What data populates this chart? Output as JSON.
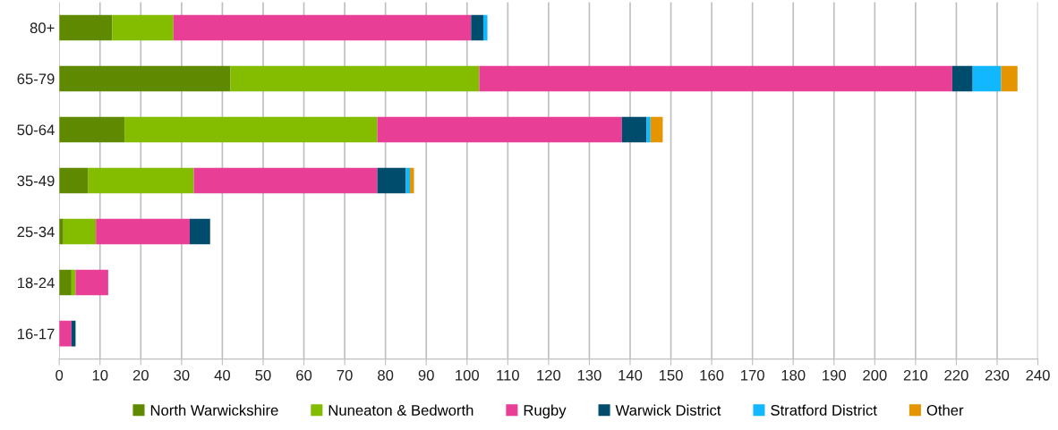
{
  "chart_data": {
    "type": "bar",
    "orientation": "horizontal",
    "stacked": true,
    "categories": [
      "80+",
      "65-79",
      "50-64",
      "35-49",
      "25-34",
      "18-24",
      "16-17"
    ],
    "series": [
      {
        "name": "North Warwickshire",
        "color": "#5f8a00",
        "values": [
          13,
          42,
          16,
          7,
          1,
          3,
          0
        ]
      },
      {
        "name": "Nuneaton & Bedworth",
        "color": "#84bd00",
        "values": [
          15,
          61,
          62,
          26,
          8,
          1,
          0
        ]
      },
      {
        "name": "Rugby",
        "color": "#e83e96",
        "values": [
          73,
          116,
          60,
          45,
          23,
          8,
          3
        ]
      },
      {
        "name": "Warwick District",
        "color": "#004c6c",
        "values": [
          3,
          5,
          6,
          7,
          5,
          0,
          1
        ]
      },
      {
        "name": "Stratford District",
        "color": "#11b8ff",
        "values": [
          1,
          7,
          1,
          1,
          0,
          0,
          0
        ]
      },
      {
        "name": "Other",
        "color": "#e59500",
        "values": [
          0,
          4,
          3,
          1,
          0,
          0,
          0
        ]
      }
    ],
    "xlim": [
      0,
      240
    ],
    "xticks": [
      0,
      10,
      20,
      30,
      40,
      50,
      60,
      70,
      80,
      90,
      100,
      110,
      120,
      130,
      140,
      150,
      160,
      170,
      180,
      190,
      200,
      210,
      220,
      230,
      240
    ],
    "grid": "x",
    "legend": "bottom"
  }
}
